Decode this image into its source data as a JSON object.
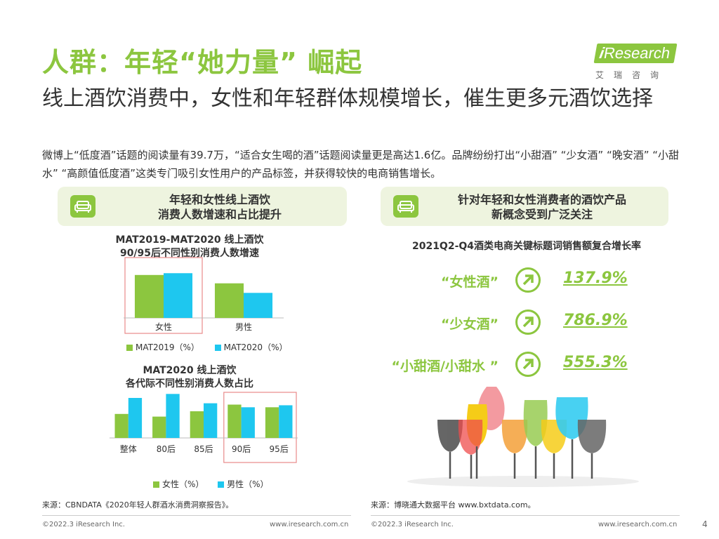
{
  "header": {
    "title": "人群：年轻“她力量” 崛起",
    "subtitle": "线上酒饮消费中，女性和年轻群体规模增长，催生更多元酒饮选择",
    "description": "微博上“低度酒”话题的阅读量有39.7万，“适合女生喝的酒”话题阅读量更是高达1.6亿。品牌纷纷打出“小甜酒” “少女酒” “晚安酒” “小甜水” “高颜值低度酒”这类专门吸引女性用户的产品标签，并获得较快的电商销售增长。"
  },
  "logo": {
    "i": "i",
    "name": "Research",
    "cn": "艾瑞咨询"
  },
  "left_panel": {
    "heading_line1": "年轻和女性线上酒饮",
    "heading_line2": "消费人数增速和占比提升"
  },
  "right_panel": {
    "heading_line1": "针对年轻和女性消费者的酒饮产品",
    "heading_line2": "新概念受到广泛关注",
    "chart_title": "2021Q2-Q4酒类电商关键标题词销售额复合增长率"
  },
  "colors": {
    "green": "#8cc63f",
    "blue": "#1ec7ef",
    "highlight": "#e88a8a"
  },
  "chart_data": [
    {
      "type": "bar",
      "title": "MAT2019-MAT2020 线上酒饮",
      "subtitle": "90/95后不同性别消费人数增速",
      "categories": [
        "女性",
        "男性"
      ],
      "series": [
        {
          "name": "MAT2019（%）",
          "values": [
            72,
            58
          ]
        },
        {
          "name": "MAT2020（%）",
          "values": [
            75,
            42
          ]
        }
      ],
      "highlight": "女性",
      "ylim": [
        0,
        100
      ],
      "grid": false
    },
    {
      "type": "bar",
      "title": "MAT2020 线上酒饮",
      "subtitle": "各代际不同性别消费人数占比",
      "categories": [
        "整体",
        "80后",
        "85后",
        "90后",
        "95后"
      ],
      "series": [
        {
          "name": "女性（%）",
          "values": [
            36,
            32,
            40,
            50,
            46
          ]
        },
        {
          "name": "男性（%）",
          "values": [
            60,
            66,
            52,
            46,
            49
          ]
        }
      ],
      "highlight": [
        "90后",
        "95后"
      ],
      "ylim": [
        0,
        80
      ],
      "grid": false
    },
    {
      "type": "table",
      "rows": [
        {
          "keyword": "“女性酒”",
          "growth": "137.9%"
        },
        {
          "keyword": "“少女酒”",
          "growth": "786.9%"
        },
        {
          "keyword": "“小甜酒/小甜水 ”",
          "growth": "555.3%"
        }
      ]
    }
  ],
  "sources": {
    "left": "来源：CBNDATA《2020年轻人群酒水消费洞察报告》。",
    "right": "来源：博晓通大数据平台 www.bxtdata.com。"
  },
  "footer": {
    "copyright_left": "©2022.3 iResearch Inc.",
    "url_left": "www.iresearch.com.cn",
    "copyright_right": "©2022.3 iResearch Inc.",
    "url_right": "www.iresearch.com.cn",
    "page_number": "4"
  }
}
